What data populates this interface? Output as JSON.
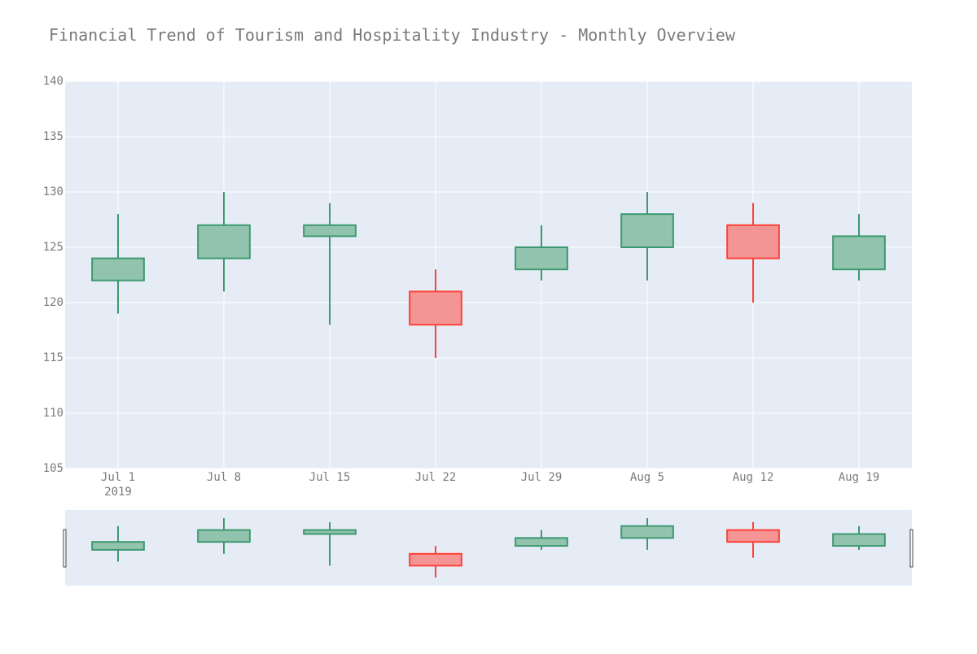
{
  "chart_data": {
    "type": "candlestick",
    "title": "Financial Trend of Tourism and Hospitality Industry - Monthly Overview",
    "xlabel": "",
    "ylabel": "",
    "ylim": [
      105,
      140
    ],
    "y_ticks": [
      105,
      110,
      115,
      120,
      125,
      130,
      135,
      140
    ],
    "x_ticks": [
      {
        "label": "Jul 1",
        "sublabel": "2019"
      },
      {
        "label": "Jul 8"
      },
      {
        "label": "Jul 15"
      },
      {
        "label": "Jul 22"
      },
      {
        "label": "Jul 29"
      },
      {
        "label": "Aug 5"
      },
      {
        "label": "Aug 12"
      },
      {
        "label": "Aug 19"
      }
    ],
    "grid": true,
    "rangeslider": true,
    "colors": {
      "increasing_line": "#3d9970",
      "increasing_fill": "#92c3ae",
      "decreasing_line": "#ff4136",
      "decreasing_fill": "#f39595",
      "plot_bg": "#e5ecf6",
      "grid": "#ffffff",
      "text": "#7a7a7a"
    },
    "candles": [
      {
        "date": "2019-07-01",
        "open": 122,
        "high": 128,
        "low": 119,
        "close": 124
      },
      {
        "date": "2019-07-08",
        "open": 124,
        "high": 130,
        "low": 121,
        "close": 127
      },
      {
        "date": "2019-07-15",
        "open": 126,
        "high": 129,
        "low": 118,
        "close": 127
      },
      {
        "date": "2019-07-22",
        "open": 121,
        "high": 123,
        "low": 115,
        "close": 118
      },
      {
        "date": "2019-07-29",
        "open": 123,
        "high": 127,
        "low": 122,
        "close": 125
      },
      {
        "date": "2019-08-05",
        "open": 125,
        "high": 130,
        "low": 122,
        "close": 128
      },
      {
        "date": "2019-08-12",
        "open": 127,
        "high": 129,
        "low": 120,
        "close": 124
      },
      {
        "date": "2019-08-19",
        "open": 123,
        "high": 128,
        "low": 122,
        "close": 126
      }
    ]
  }
}
